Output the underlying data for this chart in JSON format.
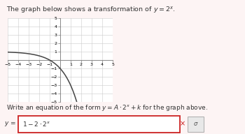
{
  "xlim": [
    -5,
    5
  ],
  "ylim": [
    -5,
    5
  ],
  "xticks": [
    -5,
    -4,
    -3,
    -2,
    -1,
    1,
    2,
    3,
    4,
    5
  ],
  "yticks": [
    -5,
    -4,
    -3,
    -2,
    -1,
    1,
    2,
    3,
    4,
    5
  ],
  "curve_color": "#444444",
  "grid_color": "#cccccc",
  "background_color": "#fdf4f4",
  "plot_bg": "#ffffff",
  "title_fontsize": 6.8,
  "tick_fontsize": 4.5,
  "question_fontsize": 6.5,
  "answer_fontsize": 6.5,
  "label_fontsize": 6.5,
  "spine_color": "#888888",
  "text_color": "#333333",
  "red_color": "#cc2222",
  "answer_text": "1 - 2·2^x"
}
